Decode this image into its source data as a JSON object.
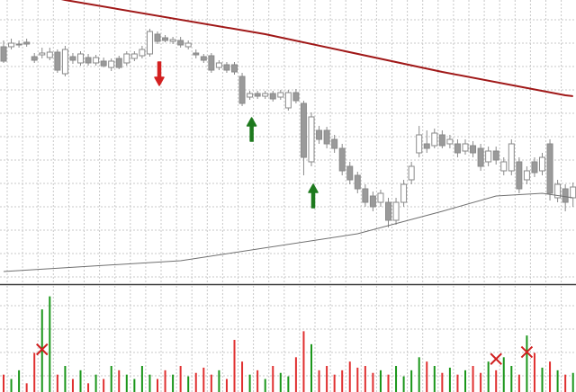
{
  "chart_data": {
    "type": "candlestick",
    "ylim": [
      0,
      315
    ],
    "grid": true,
    "up_color": "#ffffff",
    "down_color": "#9a9a9a",
    "wick_color": "#8a8a8a",
    "open": [
      263,
      263,
      265,
      268,
      252,
      254,
      251,
      257,
      233,
      252,
      245,
      251,
      245,
      247,
      240,
      250,
      245,
      250,
      253,
      255,
      277,
      273,
      269,
      270,
      263,
      256,
      252,
      253,
      240,
      243,
      243,
      230,
      207,
      211,
      208,
      211,
      207,
      195,
      212,
      200,
      135,
      170,
      170,
      160,
      150,
      130,
      120,
      105,
      97,
      90,
      90,
      70,
      90,
      115,
      145,
      155,
      153,
      165,
      155,
      155,
      147,
      153,
      150,
      135,
      147,
      125,
      125,
      135,
      115,
      135,
      125,
      155,
      95,
      105,
      95
    ],
    "high": [
      270,
      272,
      270,
      272,
      256,
      262,
      262,
      260,
      264,
      256,
      258,
      255,
      254,
      251,
      250,
      253,
      258,
      258,
      264,
      283,
      280,
      276,
      274,
      274,
      270,
      260,
      255,
      256,
      248,
      246,
      246,
      234,
      214,
      214,
      214,
      214,
      215,
      215,
      216,
      203,
      190,
      175,
      174,
      165,
      155,
      135,
      124,
      110,
      102,
      104,
      95,
      95,
      115,
      135,
      175,
      170,
      172,
      170,
      165,
      160,
      160,
      158,
      155,
      152,
      152,
      140,
      160,
      140,
      130,
      140,
      145,
      160,
      115,
      110,
      112
    ],
    "low": [
      245,
      260,
      262,
      263,
      245,
      250,
      248,
      234,
      230,
      244,
      242,
      242,
      242,
      240,
      236,
      238,
      242,
      247,
      250,
      252,
      266,
      268,
      266,
      262,
      260,
      250,
      245,
      234,
      237,
      234,
      232,
      197,
      204,
      205,
      205,
      202,
      204,
      192,
      200,
      120,
      130,
      155,
      150,
      145,
      120,
      110,
      100,
      85,
      80,
      85,
      62,
      65,
      85,
      110,
      140,
      145,
      150,
      150,
      150,
      140,
      143,
      140,
      125,
      130,
      132,
      120,
      120,
      100,
      110,
      118,
      120,
      92,
      90,
      80,
      85
    ],
    "close": [
      247,
      267,
      266,
      266,
      248,
      256,
      257,
      237,
      260,
      248,
      255,
      245,
      251,
      242,
      247,
      240,
      255,
      255,
      260,
      280,
      269,
      270,
      271,
      265,
      267,
      254,
      248,
      237,
      245,
      237,
      235,
      200,
      211,
      208,
      211,
      205,
      212,
      212,
      203,
      140,
      185,
      160,
      155,
      150,
      125,
      115,
      105,
      90,
      85,
      100,
      70,
      90,
      110,
      130,
      165,
      150,
      167,
      153,
      160,
      145,
      155,
      145,
      130,
      147,
      137,
      135,
      155,
      105,
      125,
      123,
      140,
      100,
      110,
      90,
      107
    ],
    "moving_averages": [
      {
        "color": "#a01818",
        "x": [
          0,
          8,
          34,
          57,
          73,
          74
        ],
        "values": [
          330,
          315,
          277,
          235,
          209,
          208
        ]
      },
      {
        "color": "#707070",
        "x": [
          0,
          23,
          46,
          57,
          64,
          70,
          74
        ],
        "values": [
          13,
          25,
          55,
          80,
          97,
          100,
          95
        ]
      }
    ],
    "sell_arrows": [
      20
    ],
    "buy_arrows": [
      32,
      40
    ],
    "arrow_colors": {
      "sell": "#d42020",
      "buy": "#1e7a1e"
    },
    "volume": {
      "ylim": [
        0,
        120
      ],
      "up_color": "#1a961a",
      "down_color": "#e03030",
      "values": [
        20,
        15,
        25,
        10,
        45,
        95,
        110,
        20,
        30,
        15,
        25,
        10,
        20,
        15,
        30,
        25,
        20,
        15,
        30,
        20,
        15,
        25,
        20,
        30,
        18,
        22,
        28,
        20,
        25,
        15,
        60,
        35,
        20,
        25,
        15,
        30,
        22,
        18,
        40,
        70,
        55,
        25,
        30,
        20,
        25,
        35,
        28,
        30,
        22,
        25,
        20,
        30,
        18,
        25,
        40,
        35,
        30,
        22,
        28,
        20,
        25,
        30,
        22,
        35,
        25,
        40,
        30,
        20,
        65,
        45,
        28,
        35,
        25,
        20,
        22
      ],
      "crosses": [
        {
          "index": 5,
          "value": 49
        },
        {
          "index": 64,
          "value": 38
        },
        {
          "index": 68,
          "value": 46
        }
      ],
      "cross_color": "#d02020"
    }
  }
}
